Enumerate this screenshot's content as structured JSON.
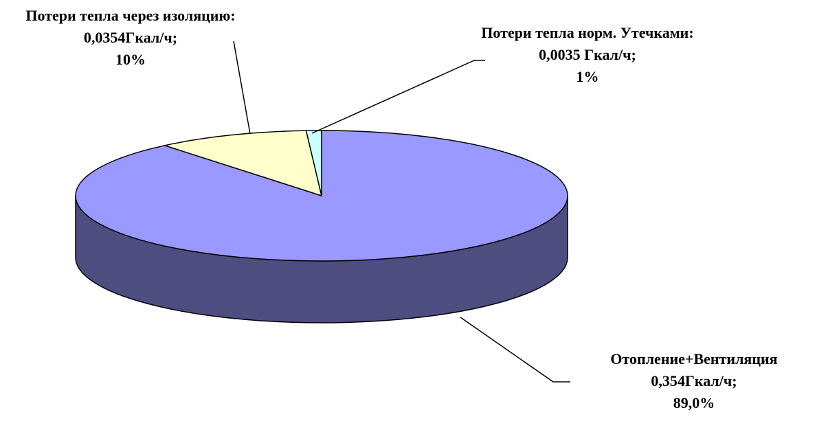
{
  "chart_data": {
    "type": "pie",
    "categories": [
      "Отопление+Вентиляция",
      "Потери тепла через изоляцию:",
      "Потери тепла норм. Утечками:"
    ],
    "amounts": [
      "0,354Гкал/ч;",
      "0,0354Гкал/ч;",
      "0,0035 Гкал/ч;"
    ],
    "values": [
      89,
      10,
      1
    ],
    "value_labels": [
      "89,0%",
      "10%",
      "1%"
    ],
    "colors": [
      "#9999ff",
      "#ffffcc",
      "#ccffff"
    ],
    "side_color": "#4d4d80"
  }
}
